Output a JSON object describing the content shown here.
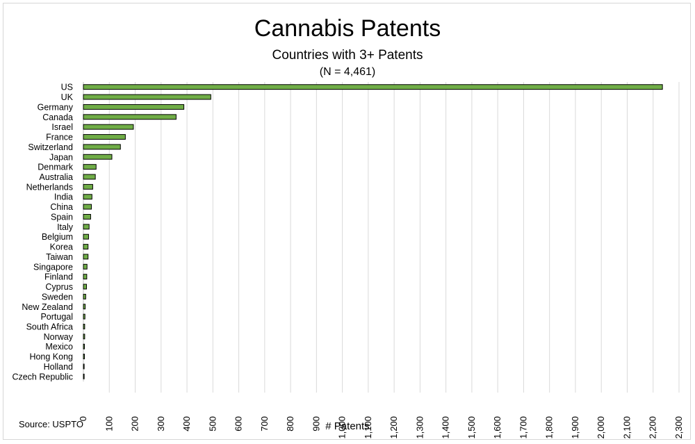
{
  "chart_data": {
    "type": "bar",
    "orientation": "horizontal",
    "title": "Cannabis Patents",
    "subtitle": "Countries with 3+ Patents",
    "subtitle2": "(N = 4,461)",
    "xlabel": "# Patents",
    "ylabel": "",
    "source": "Source: USPTO",
    "categories": [
      "US",
      "UK",
      "Germany",
      "Canada",
      "Israel",
      "France",
      "Switzerland",
      "Japan",
      "Denmark",
      "Australia",
      "Netherlands",
      "India",
      "China",
      "Spain",
      "Italy",
      "Belgium",
      "Korea",
      "Taiwan",
      "Singapore",
      "Finland",
      "Cyprus",
      "Sweden",
      "New Zealand",
      "Portugal",
      "South Africa",
      "Norway",
      "Mexico",
      "Hong Kong",
      "Holland",
      "Czech Republic"
    ],
    "values": [
      2236,
      492,
      388,
      358,
      193,
      162,
      143,
      110,
      49,
      46,
      36,
      33,
      31,
      28,
      22,
      20,
      18,
      18,
      14,
      13,
      12,
      9,
      7,
      6,
      5,
      5,
      4,
      4,
      3,
      3
    ],
    "xlim": [
      0,
      2300
    ],
    "xticks": [
      0,
      100,
      200,
      300,
      400,
      500,
      600,
      700,
      800,
      900,
      1000,
      1100,
      1200,
      1300,
      1400,
      1500,
      1600,
      1700,
      1800,
      1900,
      2000,
      2100,
      2200,
      2300
    ],
    "xtick_labels": [
      "0",
      "100",
      "200",
      "300",
      "400",
      "500",
      "600",
      "700",
      "800",
      "900",
      "1,000",
      "1,100",
      "1,200",
      "1,300",
      "1,400",
      "1,500",
      "1,600",
      "1,700",
      "1,800",
      "1,900",
      "2,000",
      "2,100",
      "2,200",
      "2,300"
    ],
    "grid": "vertical",
    "bar_color": "#70ad47",
    "bar_edge_color": "#000000",
    "grid_color": "#d9d9d9"
  }
}
